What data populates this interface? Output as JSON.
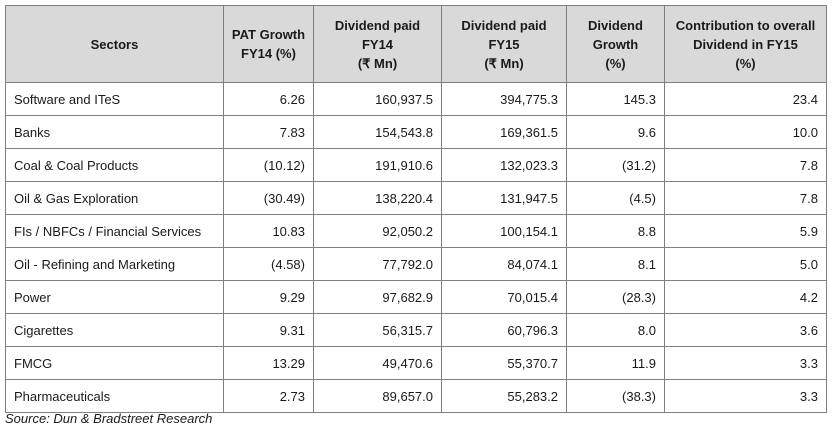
{
  "headers": [
    {
      "lines": [
        "Sectors"
      ]
    },
    {
      "lines": [
        "PAT Growth",
        "FY14 (%)"
      ]
    },
    {
      "lines": [
        "Dividend paid",
        "FY14",
        "(₹ Mn)"
      ]
    },
    {
      "lines": [
        "Dividend paid",
        "FY15",
        "(₹ Mn)"
      ]
    },
    {
      "lines": [
        "Dividend",
        "Growth",
        "(%)"
      ]
    },
    {
      "lines": [
        "Contribution to overall",
        "Dividend in FY15",
        "(%)"
      ]
    }
  ],
  "rows": [
    [
      "Software and ITeS",
      "6.26",
      "160,937.5",
      "394,775.3",
      "145.3",
      "23.4"
    ],
    [
      "Banks",
      "7.83",
      "154,543.8",
      "169,361.5",
      "9.6",
      "10.0"
    ],
    [
      "Coal & Coal Products",
      "(10.12)",
      "191,910.6",
      "132,023.3",
      "(31.2)",
      "7.8"
    ],
    [
      "Oil & Gas Exploration",
      "(30.49)",
      "138,220.4",
      "131,947.5",
      "(4.5)",
      "7.8"
    ],
    [
      "FIs / NBFCs / Financial Services",
      "10.83",
      "92,050.2",
      "100,154.1",
      "8.8",
      "5.9"
    ],
    [
      "Oil - Refining and Marketing",
      "(4.58)",
      "77,792.0",
      "84,074.1",
      "8.1",
      "5.0"
    ],
    [
      "Power",
      "9.29",
      "97,682.9",
      "70,015.4",
      "(28.3)",
      "4.2"
    ],
    [
      "Cigarettes",
      "9.31",
      "56,315.7",
      "60,796.3",
      "8.0",
      "3.6"
    ],
    [
      "FMCG",
      "13.29",
      "49,470.6",
      "55,370.7",
      "11.9",
      "3.3"
    ],
    [
      "Pharmaceuticals",
      "2.73",
      "89,657.0",
      "55,283.2",
      "(38.3)",
      "3.3"
    ]
  ],
  "source": "Source: Dun & Bradstreet Research"
}
